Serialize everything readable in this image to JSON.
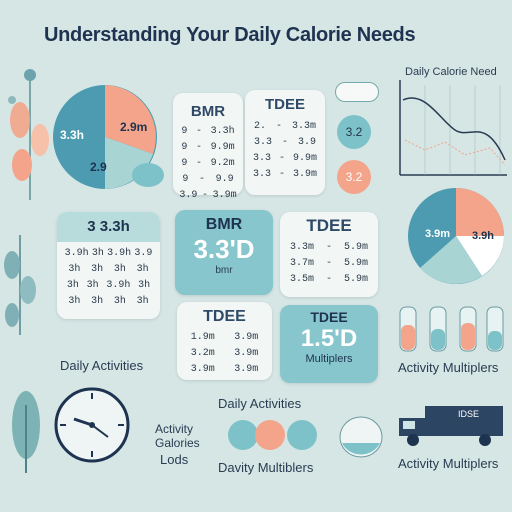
{
  "title": "Understanding Your Daily Calorie Needs",
  "chart_label": "Daily Calorie Need",
  "pie_left": {
    "a": "3.3h",
    "b": "2.9m",
    "c": "2.9"
  },
  "card_bmr_top": {
    "title": "BMR",
    "rows": [
      [
        "9",
        "-",
        "3.3h"
      ],
      [
        "9",
        "-",
        "9.9m"
      ],
      [
        "9",
        "-",
        "9.2m"
      ],
      [
        "9",
        "-",
        "9.9"
      ],
      [
        "3.9",
        "-",
        "3.9m"
      ]
    ]
  },
  "card_tdee_top": {
    "title": "TDEE",
    "rows": [
      [
        "2.",
        "-",
        "3.3m"
      ],
      [
        "3.3",
        "-",
        "3.9"
      ],
      [
        "3.3",
        "-",
        "9.9m"
      ],
      [
        "3.3",
        "-",
        "3.9m"
      ]
    ]
  },
  "bubble_top": "3.2",
  "bubble_mid": "3.2",
  "pie_right": {
    "a": "3.9m",
    "b": "3.9h"
  },
  "card_grid": {
    "title": "3 3.3h",
    "rows": [
      [
        "3.9h",
        "3h",
        "3.9h",
        "3.9"
      ],
      [
        "3h",
        "3h",
        "3h",
        "3h"
      ],
      [
        "3h",
        "3h",
        "3.9h",
        "3h"
      ],
      [
        "3h",
        "3h",
        "3h",
        "3h"
      ]
    ]
  },
  "card_bmr_big": {
    "title": "BMR",
    "value": "3.3'D",
    "sub": "bmr"
  },
  "card_tdee_mid": {
    "title": "TDEE",
    "rows": [
      [
        "3.3m",
        "-",
        "5.9m"
      ],
      [
        "3.7m",
        "-",
        "5.9m"
      ],
      [
        "3.5m",
        "-",
        "5.9m"
      ]
    ]
  },
  "card_tdee_low": {
    "title": "TDEE",
    "rows": [
      [
        "1.9m",
        "3.9m"
      ],
      [
        "3.2m",
        "3.9m"
      ],
      [
        "3.9m",
        "3.9m"
      ]
    ]
  },
  "card_multipliers": {
    "title": "TDEE",
    "value": "1.5'D",
    "sub": "Multiplers"
  },
  "labels": {
    "daily_activities_left": "Daily Activities",
    "activity_multipliers_right": "Activity Multiplers",
    "daily_activities_center": "Daily Activities",
    "activity_calories": "Activity Galories",
    "ods": "Lods",
    "davity_multiblers": "Davity Multiblers",
    "activity_multipliers_bottom": "Activity Multiplers"
  },
  "truck_label": "IDSE",
  "colors": {
    "teal": "#7ec2c9",
    "peach": "#f3a48a",
    "navy": "#1e3350",
    "bg": "#d6e6e5"
  }
}
